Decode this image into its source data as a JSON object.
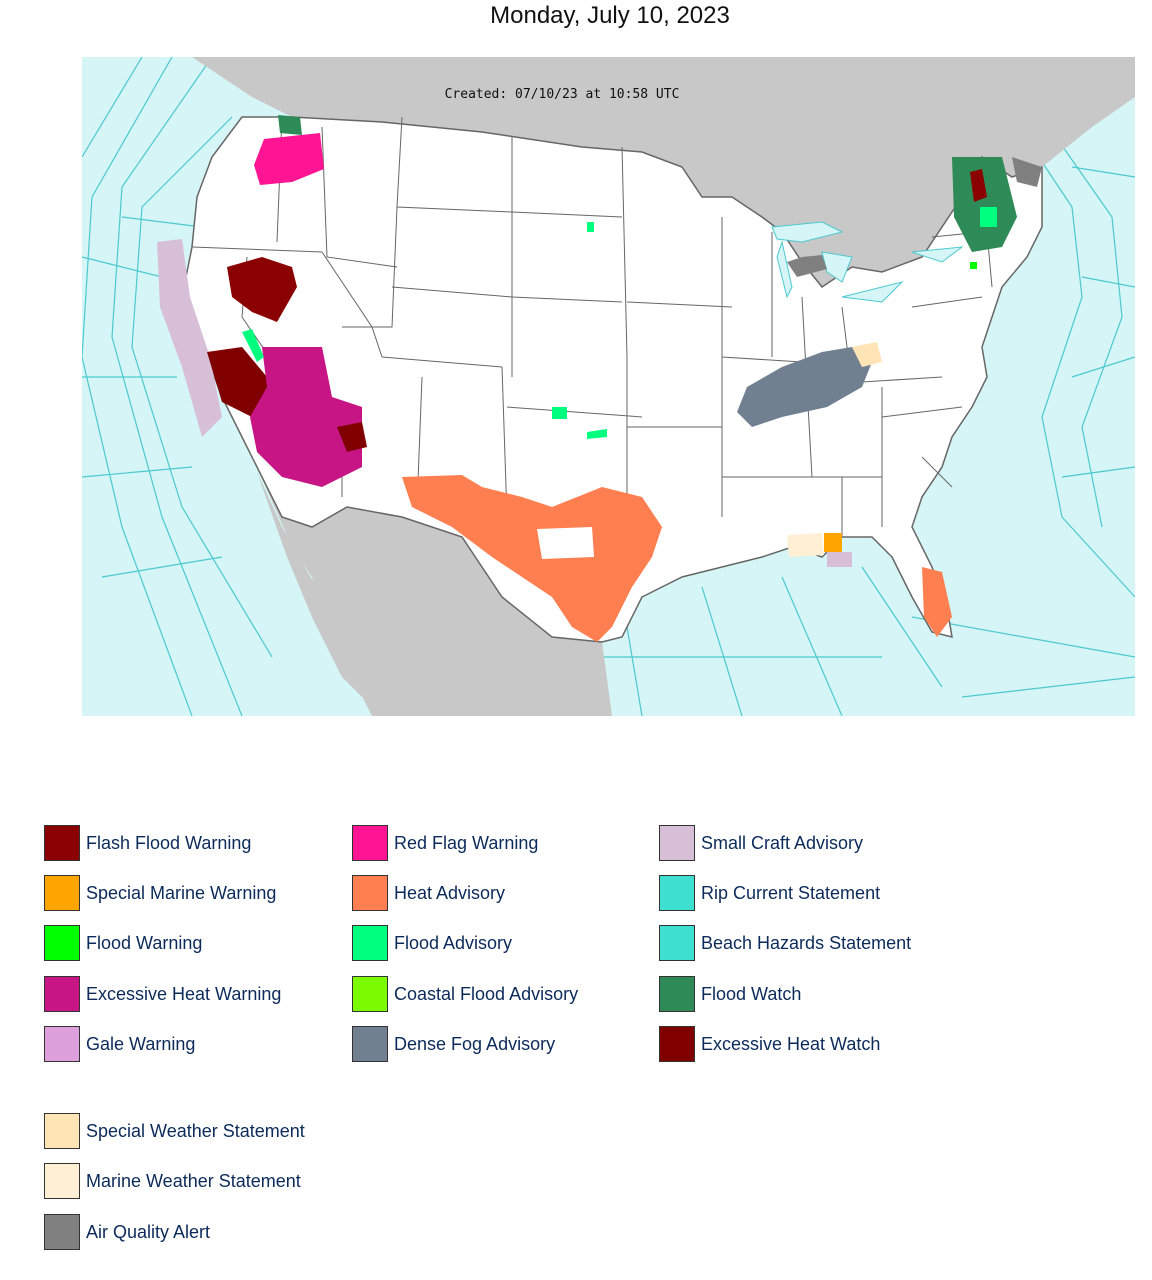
{
  "title": "Monday, July 10, 2023",
  "map": {
    "created_stamp": "Created: 07/10/23 at 10:58 UTC",
    "colors": {
      "ocean": "#d5f5f6",
      "land_foreign": "#c8c8c8",
      "land_us": "#ffffff",
      "county_lines": "#b4b4b4",
      "state_lines": "#666666",
      "marine_zone_lines": "#4cc9cf"
    }
  },
  "legend": {
    "columns": [
      [
        {
          "label": "Flash Flood Warning",
          "color": "#8b0000"
        },
        {
          "label": "Special Marine Warning",
          "color": "#ffa500"
        },
        {
          "label": "Flood Warning",
          "color": "#00ff00"
        },
        {
          "label": "Excessive Heat Warning",
          "color": "#c71585"
        },
        {
          "label": "Gale Warning",
          "color": "#dda0dd"
        }
      ],
      [
        {
          "label": "Red Flag Warning",
          "color": "#ff1493"
        },
        {
          "label": "Heat Advisory",
          "color": "#ff7f50"
        },
        {
          "label": "Flood Advisory",
          "color": "#00ff7f"
        },
        {
          "label": "Coastal Flood Advisory",
          "color": "#7cfc00"
        },
        {
          "label": "Dense Fog Advisory",
          "color": "#708090"
        }
      ],
      [
        {
          "label": "Small Craft Advisory",
          "color": "#d8bfd8"
        },
        {
          "label": "Rip Current Statement",
          "color": "#40e0d0"
        },
        {
          "label": "Beach Hazards Statement",
          "color": "#40e0d0"
        },
        {
          "label": "Flood Watch",
          "color": "#2e8b57"
        },
        {
          "label": "Excessive Heat Watch",
          "color": "#800000"
        }
      ]
    ],
    "extra": [
      {
        "label": "Special Weather Statement",
        "color": "#ffe4b5"
      },
      {
        "label": "Marine Weather Statement",
        "color": "#ffefd5"
      },
      {
        "label": "Air Quality Alert",
        "color": "#808080"
      }
    ]
  }
}
